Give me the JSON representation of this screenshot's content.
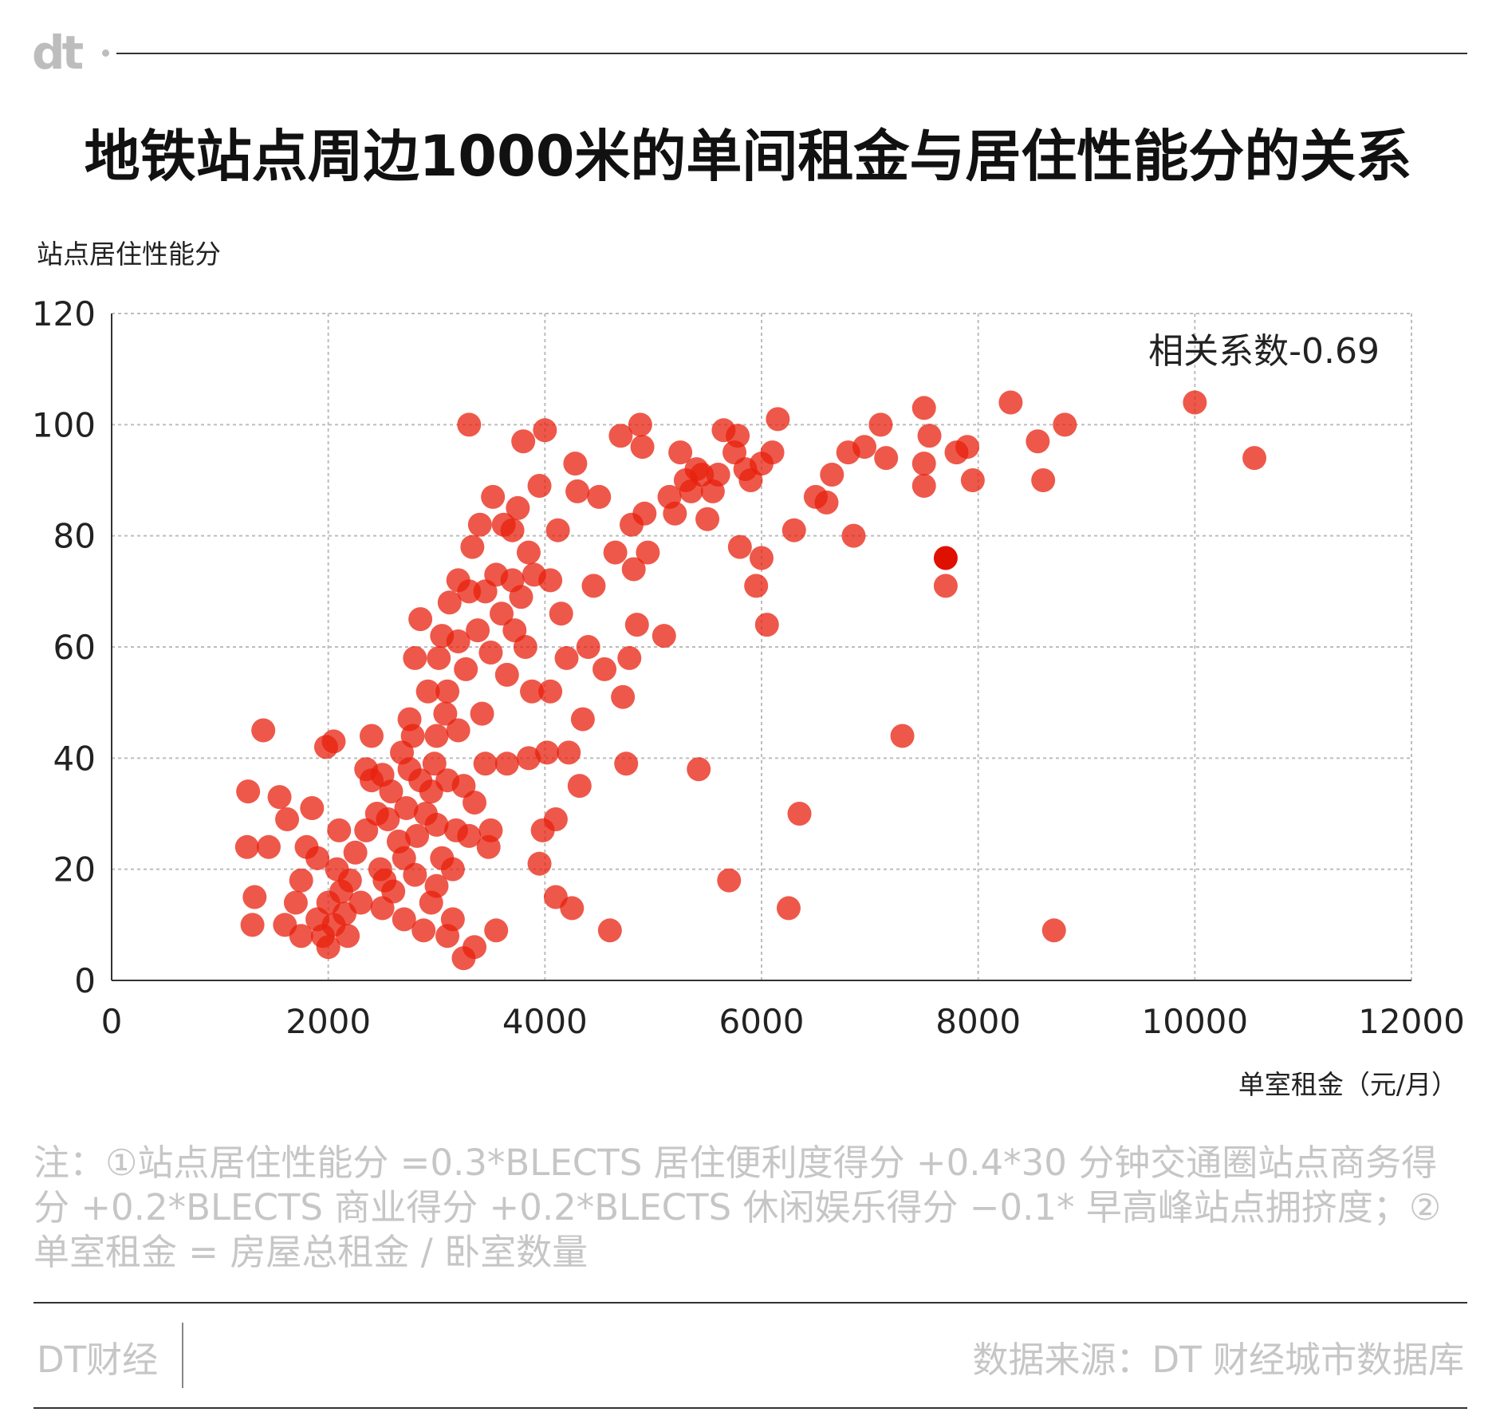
{
  "logo": "dt",
  "title": "地铁站点周边1000米的单间租金与居住性能分的关系",
  "note": "注：①站点居住性能分 =0.3*BLECTS 居住便利度得分 +0.4*30 分钟交通圈站点商务得分 +0.2*BLECTS 商业得分 +0.2*BLECTS 休闲娱乐得分 −0.1* 早高峰站点拥挤度；②单室租金 = 房屋总租金 / 卧室数量",
  "footer": {
    "brand": "DT财经",
    "source": "数据来源：DT 财经城市数据库"
  },
  "colors": {
    "point": "#e8200e",
    "highlight": "#e01000",
    "grid": "#bdbdbd",
    "axis": "#333333"
  },
  "chart_data": {
    "type": "scatter",
    "ylabel": "站点居住性能分",
    "xlabel": "单室租金（元/月）",
    "xlim": [
      0,
      12000
    ],
    "ylim": [
      0,
      120
    ],
    "x_ticks": [
      0,
      2000,
      4000,
      6000,
      8000,
      10000,
      12000
    ],
    "y_ticks": [
      0,
      20,
      40,
      60,
      80,
      100,
      120
    ],
    "grid": true,
    "annotation": "相关系数-0.69",
    "highlight": [
      7700,
      76
    ],
    "points": [
      [
        1250,
        24
      ],
      [
        1260,
        34
      ],
      [
        1300,
        10
      ],
      [
        1320,
        15
      ],
      [
        1400,
        45
      ],
      [
        1450,
        24
      ],
      [
        1550,
        33
      ],
      [
        1600,
        10
      ],
      [
        1620,
        29
      ],
      [
        1700,
        14
      ],
      [
        1750,
        18
      ],
      [
        1800,
        24
      ],
      [
        1850,
        31
      ],
      [
        1900,
        22
      ],
      [
        1950,
        8
      ],
      [
        2000,
        6
      ],
      [
        2050,
        10
      ],
      [
        2080,
        20
      ],
      [
        2100,
        27
      ],
      [
        2120,
        16
      ],
      [
        2150,
        12
      ],
      [
        1750,
        8
      ],
      [
        1900,
        11
      ],
      [
        2000,
        14
      ],
      [
        1980,
        42
      ],
      [
        2050,
        43
      ],
      [
        2180,
        8
      ],
      [
        2200,
        18
      ],
      [
        2250,
        23
      ],
      [
        2300,
        14
      ],
      [
        2350,
        38
      ],
      [
        2350,
        27
      ],
      [
        2400,
        36
      ],
      [
        2400,
        44
      ],
      [
        2450,
        30
      ],
      [
        2480,
        20
      ],
      [
        2500,
        13
      ],
      [
        2500,
        37
      ],
      [
        2520,
        18
      ],
      [
        2550,
        29
      ],
      [
        2580,
        34
      ],
      [
        2600,
        16
      ],
      [
        2650,
        25
      ],
      [
        2680,
        41
      ],
      [
        2700,
        11
      ],
      [
        2700,
        22
      ],
      [
        2720,
        31
      ],
      [
        2750,
        38
      ],
      [
        2750,
        47
      ],
      [
        2780,
        44
      ],
      [
        2800,
        19
      ],
      [
        2800,
        58
      ],
      [
        2820,
        26
      ],
      [
        2850,
        36
      ],
      [
        2850,
        65
      ],
      [
        2880,
        9
      ],
      [
        2900,
        30
      ],
      [
        2920,
        52
      ],
      [
        2950,
        14
      ],
      [
        2950,
        34
      ],
      [
        2980,
        39
      ],
      [
        3000,
        17
      ],
      [
        3000,
        28
      ],
      [
        3000,
        44
      ],
      [
        3020,
        58
      ],
      [
        3050,
        22
      ],
      [
        3050,
        62
      ],
      [
        3080,
        48
      ],
      [
        3100,
        8
      ],
      [
        3100,
        36
      ],
      [
        3100,
        52
      ],
      [
        3120,
        68
      ],
      [
        3150,
        11
      ],
      [
        3150,
        20
      ],
      [
        3180,
        27
      ],
      [
        3200,
        45
      ],
      [
        3200,
        61
      ],
      [
        3200,
        72
      ],
      [
        3250,
        35
      ],
      [
        3250,
        4
      ],
      [
        3270,
        56
      ],
      [
        3300,
        26
      ],
      [
        3300,
        70
      ],
      [
        3300,
        100
      ],
      [
        3330,
        78
      ],
      [
        3350,
        6
      ],
      [
        3350,
        32
      ],
      [
        3380,
        63
      ],
      [
        3400,
        82
      ],
      [
        3420,
        48
      ],
      [
        3450,
        39
      ],
      [
        3450,
        70
      ],
      [
        3480,
        24
      ],
      [
        3500,
        27
      ],
      [
        3500,
        59
      ],
      [
        3520,
        87
      ],
      [
        3550,
        9
      ],
      [
        3550,
        73
      ],
      [
        3600,
        66
      ],
      [
        3620,
        82
      ],
      [
        3650,
        39
      ],
      [
        3650,
        55
      ],
      [
        3700,
        72
      ],
      [
        3700,
        81
      ],
      [
        3720,
        63
      ],
      [
        3750,
        85
      ],
      [
        3780,
        69
      ],
      [
        3800,
        97
      ],
      [
        3820,
        60
      ],
      [
        3850,
        40
      ],
      [
        3850,
        77
      ],
      [
        3880,
        52
      ],
      [
        3900,
        73
      ],
      [
        3950,
        89
      ],
      [
        3950,
        21
      ],
      [
        3980,
        27
      ],
      [
        4000,
        99
      ],
      [
        4020,
        41
      ],
      [
        4050,
        52
      ],
      [
        4050,
        72
      ],
      [
        4100,
        15
      ],
      [
        4100,
        29
      ],
      [
        4120,
        81
      ],
      [
        4150,
        66
      ],
      [
        4200,
        58
      ],
      [
        4220,
        41
      ],
      [
        4250,
        13
      ],
      [
        4280,
        93
      ],
      [
        4300,
        88
      ],
      [
        4320,
        35
      ],
      [
        4350,
        47
      ],
      [
        4400,
        60
      ],
      [
        4450,
        71
      ],
      [
        4500,
        87
      ],
      [
        4550,
        56
      ],
      [
        4600,
        9
      ],
      [
        4650,
        77
      ],
      [
        4700,
        98
      ],
      [
        4720,
        51
      ],
      [
        4750,
        39
      ],
      [
        4780,
        58
      ],
      [
        4800,
        82
      ],
      [
        4820,
        74
      ],
      [
        4850,
        64
      ],
      [
        4880,
        100
      ],
      [
        4900,
        96
      ],
      [
        4920,
        84
      ],
      [
        4950,
        77
      ],
      [
        5100,
        62
      ],
      [
        5150,
        87
      ],
      [
        5200,
        84
      ],
      [
        5250,
        95
      ],
      [
        5300,
        90
      ],
      [
        5350,
        88
      ],
      [
        5400,
        92
      ],
      [
        5420,
        38
      ],
      [
        5450,
        91
      ],
      [
        5500,
        83
      ],
      [
        5550,
        88
      ],
      [
        5600,
        91
      ],
      [
        5650,
        99
      ],
      [
        5700,
        18
      ],
      [
        5750,
        95
      ],
      [
        5780,
        98
      ],
      [
        5800,
        78
      ],
      [
        5850,
        92
      ],
      [
        5900,
        90
      ],
      [
        5950,
        71
      ],
      [
        6000,
        76
      ],
      [
        6000,
        93
      ],
      [
        6050,
        64
      ],
      [
        6100,
        95
      ],
      [
        6150,
        101
      ],
      [
        6250,
        13
      ],
      [
        6300,
        81
      ],
      [
        6350,
        30
      ],
      [
        6500,
        87
      ],
      [
        6600,
        86
      ],
      [
        6650,
        91
      ],
      [
        6800,
        95
      ],
      [
        6850,
        80
      ],
      [
        6950,
        96
      ],
      [
        7100,
        100
      ],
      [
        7150,
        94
      ],
      [
        7300,
        44
      ],
      [
        7500,
        103
      ],
      [
        7500,
        93
      ],
      [
        7500,
        89
      ],
      [
        7550,
        98
      ],
      [
        7700,
        71
      ],
      [
        7800,
        95
      ],
      [
        7900,
        96
      ],
      [
        7950,
        90
      ],
      [
        8300,
        104
      ],
      [
        8550,
        97
      ],
      [
        8600,
        90
      ],
      [
        8700,
        9
      ],
      [
        8800,
        100
      ],
      [
        10000,
        104
      ],
      [
        10550,
        94
      ]
    ]
  }
}
